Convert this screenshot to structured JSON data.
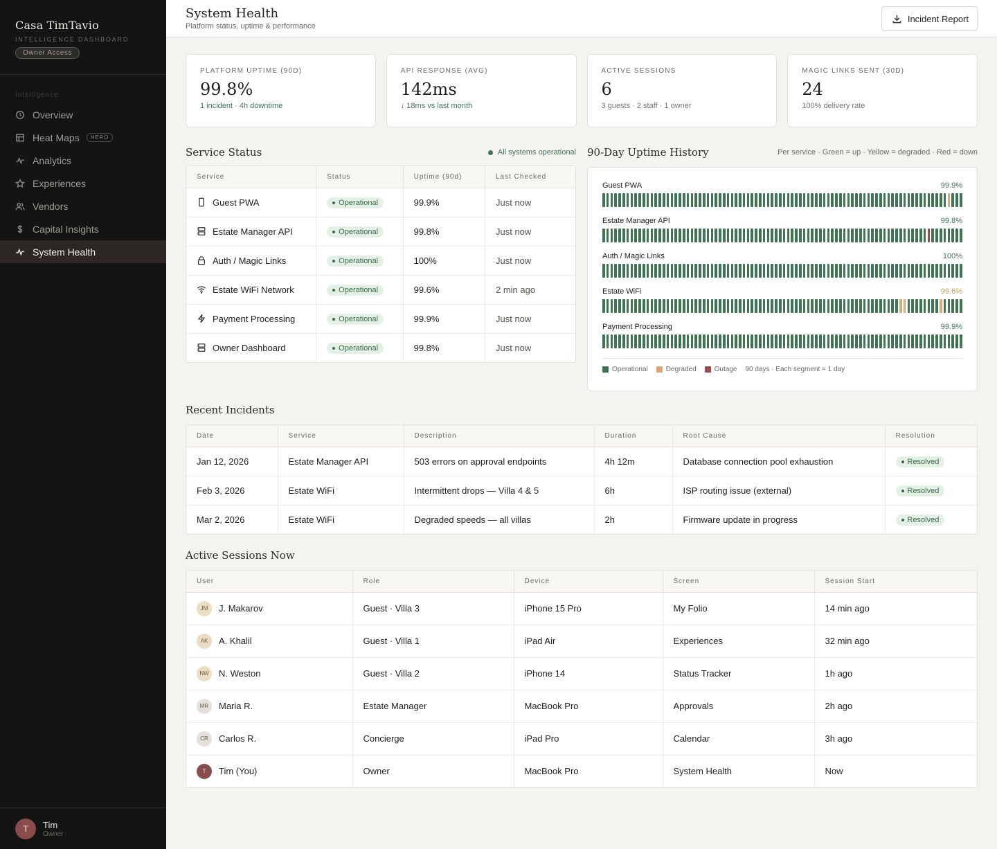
{
  "brand": {
    "name": "Casa TimTavio",
    "subtitle": "INTELLIGENCE DASHBOARD",
    "access": "Owner Access"
  },
  "nav": {
    "section": "Intelligence",
    "items": [
      {
        "label": "Overview",
        "icon": "clock-icon"
      },
      {
        "label": "Heat Maps",
        "icon": "grid-icon",
        "badge": "HERO"
      },
      {
        "label": "Analytics",
        "icon": "activity-icon"
      },
      {
        "label": "Experiences",
        "icon": "star-icon"
      },
      {
        "label": "Vendors",
        "icon": "users-icon"
      },
      {
        "label": "Capital Insights",
        "icon": "dollar-icon"
      },
      {
        "label": "System Health",
        "icon": "pulse-icon",
        "active": true
      }
    ]
  },
  "user": {
    "initial": "T",
    "name": "Tim",
    "role": "Owner"
  },
  "header": {
    "title": "System Health",
    "subtitle": "Platform status, uptime & performance",
    "button": "Incident Report"
  },
  "kpis": [
    {
      "label": "PLATFORM UPTIME (90D)",
      "value": "99.8%",
      "note": "1 incident · 4h downtime",
      "note_color": "green"
    },
    {
      "label": "API RESPONSE (AVG)",
      "value": "142ms",
      "note": "↓ 18ms vs last month",
      "note_color": "green"
    },
    {
      "label": "ACTIVE SESSIONS",
      "value": "6",
      "note": "3 guests · 2 staff · 1 owner",
      "note_color": "muted"
    },
    {
      "label": "MAGIC LINKS SENT (30D)",
      "value": "24",
      "note": "100% delivery rate",
      "note_color": "muted"
    }
  ],
  "service_status": {
    "title": "Service Status",
    "summary": "All systems operational",
    "columns": [
      "Service",
      "Status",
      "Uptime (90d)",
      "Last Checked"
    ],
    "rows": [
      {
        "icon": "phone-icon",
        "service": "Guest PWA",
        "status": "Operational",
        "uptime": "99.9%",
        "checked": "Just now"
      },
      {
        "icon": "server-icon",
        "service": "Estate Manager API",
        "status": "Operational",
        "uptime": "99.8%",
        "checked": "Just now"
      },
      {
        "icon": "lock-icon",
        "service": "Auth / Magic Links",
        "status": "Operational",
        "uptime": "100%",
        "checked": "Just now"
      },
      {
        "icon": "wifi-icon",
        "service": "Estate WiFi Network",
        "status": "Operational",
        "uptime": "99.6%",
        "checked": "2 min ago"
      },
      {
        "icon": "bolt-icon",
        "service": "Payment Processing",
        "status": "Operational",
        "uptime": "99.9%",
        "checked": "Just now"
      },
      {
        "icon": "server-icon",
        "service": "Owner Dashboard",
        "status": "Operational",
        "uptime": "99.8%",
        "checked": "Just now"
      }
    ]
  },
  "uptime": {
    "title": "90-Day Uptime History",
    "legend": "Per service · Green = up · Yellow = degraded · Red = down",
    "colors": {
      "up": "#3f7552",
      "degraded": "#d9a978",
      "outage": "#9a4d4f"
    },
    "rows": [
      {
        "name": "Guest PWA",
        "pct": "99.9%",
        "warn": false,
        "degraded": [
          86
        ],
        "outage": []
      },
      {
        "name": "Estate Manager API",
        "pct": "99.8%",
        "warn": false,
        "degraded": [],
        "outage": [
          81
        ]
      },
      {
        "name": "Auth / Magic Links",
        "pct": "100%",
        "warn": false,
        "degraded": [],
        "outage": []
      },
      {
        "name": "Estate WiFi",
        "pct": "99.6%",
        "warn": true,
        "degraded": [
          74,
          75,
          84
        ],
        "outage": []
      },
      {
        "name": "Payment Processing",
        "pct": "99.9%",
        "warn": false,
        "degraded": [],
        "outage": []
      }
    ],
    "legend_items": [
      "Operational",
      "Degraded",
      "Outage"
    ],
    "footnote": "90 days · Each segment = 1 day"
  },
  "incidents": {
    "title": "Recent Incidents",
    "columns": [
      "Date",
      "Service",
      "Description",
      "Duration",
      "Root Cause",
      "Resolution"
    ],
    "rows": [
      {
        "date": "Jan 12, 2026",
        "service": "Estate Manager API",
        "desc": "503 errors on approval endpoints",
        "dur": "4h 12m",
        "cause": "Database connection pool exhaustion",
        "res": "Resolved"
      },
      {
        "date": "Feb 3, 2026",
        "service": "Estate WiFi",
        "desc": "Intermittent drops — Villa 4 & 5",
        "dur": "6h",
        "cause": "ISP routing issue (external)",
        "res": "Resolved"
      },
      {
        "date": "Mar 2, 2026",
        "service": "Estate WiFi",
        "desc": "Degraded speeds — all villas",
        "dur": "2h",
        "cause": "Firmware update in progress",
        "res": "Resolved"
      }
    ]
  },
  "sessions": {
    "title": "Active Sessions Now",
    "columns": [
      "User",
      "Role",
      "Device",
      "Screen",
      "Session Start"
    ],
    "rows": [
      {
        "initials": "JM",
        "user": "J. Makarov",
        "role": "Guest · Villa 3",
        "device": "iPhone 15 Pro",
        "screen": "My Folio",
        "start": "14 min ago",
        "color": "#ecdcc2"
      },
      {
        "initials": "AK",
        "user": "A. Khalil",
        "role": "Guest · Villa 1",
        "device": "iPad Air",
        "screen": "Experiences",
        "start": "32 min ago",
        "color": "#ecdcc2"
      },
      {
        "initials": "NW",
        "user": "N. Weston",
        "role": "Guest · Villa 2",
        "device": "iPhone 14",
        "screen": "Status Tracker",
        "start": "1h ago",
        "color": "#ecdcc2"
      },
      {
        "initials": "MR",
        "user": "Maria R.",
        "role": "Estate Manager",
        "device": "MacBook Pro",
        "screen": "Approvals",
        "start": "2h ago",
        "color": "#e4e1da"
      },
      {
        "initials": "CR",
        "user": "Carlos R.",
        "role": "Concierge",
        "device": "iPad Pro",
        "screen": "Calendar",
        "start": "3h ago",
        "color": "#e4e1da"
      },
      {
        "initials": "T",
        "user": "Tim (You)",
        "role": "Owner",
        "device": "MacBook Pro",
        "screen": "System Health",
        "start": "Now",
        "color": "#8a4b4b"
      }
    ]
  }
}
